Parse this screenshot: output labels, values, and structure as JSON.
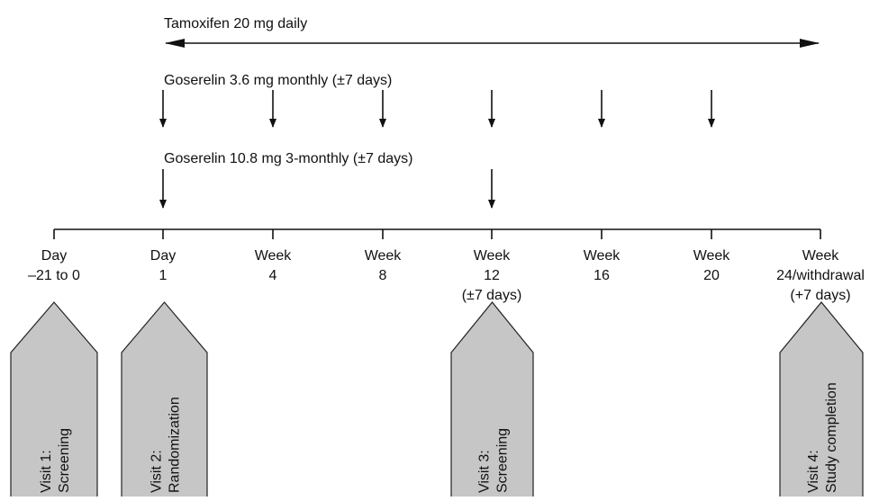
{
  "therapies": [
    {
      "label": "Tamoxifen 20 mg daily"
    },
    {
      "label": "Goserelin 3.6 mg monthly (±7 days)"
    },
    {
      "label": "Goserelin 10.8 mg 3-monthly  (±7 days)"
    }
  ],
  "timepoints": [
    {
      "lines": [
        "Day",
        "–21 to 0"
      ]
    },
    {
      "lines": [
        "Day",
        "1"
      ]
    },
    {
      "lines": [
        "Week",
        "4"
      ]
    },
    {
      "lines": [
        "Week",
        "8"
      ]
    },
    {
      "lines": [
        "Week",
        "12",
        "(±7 days)"
      ]
    },
    {
      "lines": [
        "Week",
        "16"
      ]
    },
    {
      "lines": [
        "Week",
        "20"
      ]
    },
    {
      "lines": [
        "Week",
        "24/withdrawal",
        "(+7 days)"
      ]
    }
  ],
  "visits": [
    {
      "lines": [
        "Visit 1:",
        "Screening"
      ]
    },
    {
      "lines": [
        "Visit 2:",
        "Randomization"
      ]
    },
    {
      "lines": [
        "Visit 3:",
        "Screening"
      ]
    },
    {
      "lines": [
        "Visit 4:",
        "Study completion"
      ]
    }
  ]
}
